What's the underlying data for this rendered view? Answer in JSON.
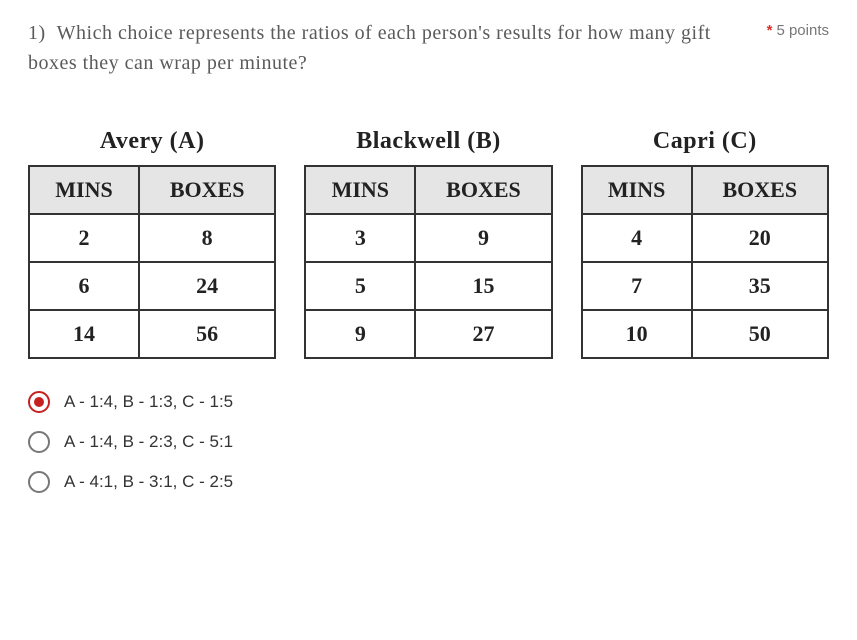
{
  "question": {
    "number": "1)",
    "text": "Which choice represents the ratios of each person's results for how many gift boxes they can wrap per minute?",
    "points_marker": "*",
    "points_text": "5 points"
  },
  "tables": [
    {
      "title": "Avery (A)",
      "col1": "MINS",
      "col2": "BOXES",
      "rows": [
        {
          "c1": "2",
          "c2": "8"
        },
        {
          "c1": "6",
          "c2": "24"
        },
        {
          "c1": "14",
          "c2": "56"
        }
      ]
    },
    {
      "title": "Blackwell (B)",
      "col1": "MINS",
      "col2": "BOXES",
      "rows": [
        {
          "c1": "3",
          "c2": "9"
        },
        {
          "c1": "5",
          "c2": "15"
        },
        {
          "c1": "9",
          "c2": "27"
        }
      ]
    },
    {
      "title": "Capri (C)",
      "col1": "MINS",
      "col2": "BOXES",
      "rows": [
        {
          "c1": "4",
          "c2": "20"
        },
        {
          "c1": "7",
          "c2": "35"
        },
        {
          "c1": "10",
          "c2": "50"
        }
      ]
    }
  ],
  "options": [
    {
      "label": "A - 1:4, B - 1:3, C - 1:5",
      "selected": true
    },
    {
      "label": "A - 1:4, B - 2:3, C - 5:1",
      "selected": false
    },
    {
      "label": "A - 4:1, B - 3:1, C - 2:5",
      "selected": false
    }
  ]
}
